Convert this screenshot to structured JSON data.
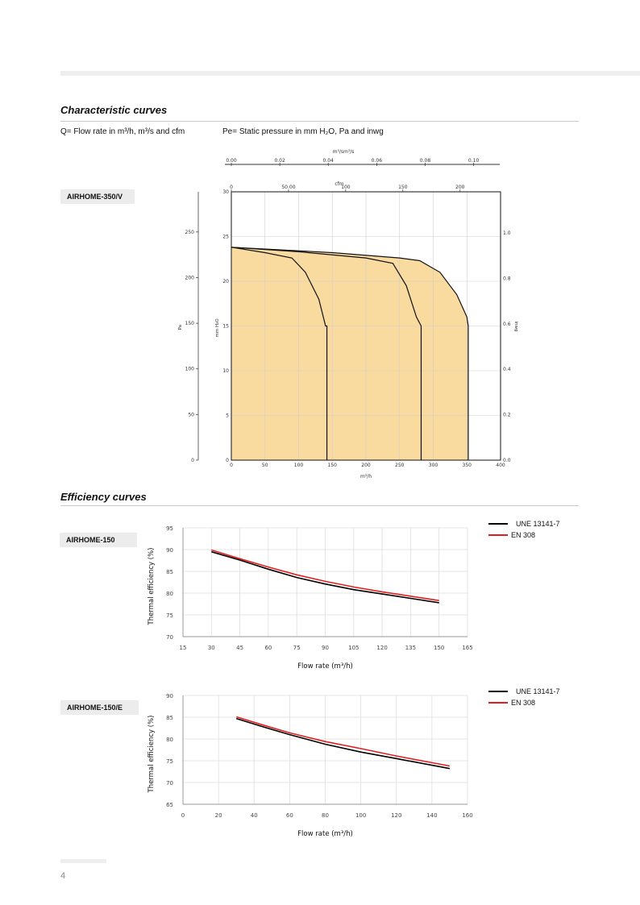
{
  "header": {
    "sections": {
      "characteristic": "Characteristic curves",
      "efficiency": "Efficiency curves"
    }
  },
  "notes": {
    "flow": "Q= Flow rate in m³/h, m³/s and cfm",
    "pressure": "Pe= Static pressure in mm H₂O, Pa and inwg"
  },
  "char_chart": {
    "model": "AIRHOME-350/V",
    "top_axis_label": "m³/sm³/s",
    "top_ticks": [
      "0.00",
      "0.02",
      "0.04",
      "0.06",
      "0.08",
      "0.10"
    ],
    "cfm_label": "cfm",
    "cfm_ticks": [
      "0",
      "50.00",
      "100",
      "150",
      "200"
    ],
    "pa_ticks": [
      "0",
      "50",
      "100",
      "150",
      "200",
      "250"
    ],
    "pa_label": "Pa",
    "mmh2o_ticks": [
      "0",
      "5",
      "10",
      "15",
      "20",
      "25",
      "30"
    ],
    "mmh2o_label": "mm H₂O",
    "inwg_ticks": [
      "0.0",
      "0.2",
      "0.4",
      "0.6",
      "0.8",
      "1.0"
    ],
    "inwg_label": "inwg",
    "x_ticks": [
      "0",
      "50",
      "100",
      "150",
      "200",
      "250",
      "300",
      "350",
      "400"
    ],
    "x_label": "m³/h",
    "fill_color": "#f9da9f",
    "curve_color": "#111111"
  },
  "chart_data": [
    {
      "type": "area",
      "title": "AIRHOME-350/V",
      "xlabel": "m³/h",
      "ylabel": "mm H₂O",
      "xlim": [
        0,
        400
      ],
      "ylim": [
        0,
        30
      ],
      "grid": true,
      "series": [
        {
          "x": [
            0,
            50,
            90,
            110,
            130,
            140,
            142,
            142
          ],
          "y": [
            23.8,
            23.2,
            22.6,
            21,
            18,
            15,
            15,
            0
          ]
        },
        {
          "x": [
            0,
            100,
            200,
            240,
            260,
            275,
            282,
            282
          ],
          "y": [
            23.8,
            23.3,
            22.6,
            22,
            19.5,
            16,
            15,
            0
          ]
        },
        {
          "x": [
            0,
            150,
            250,
            280,
            310,
            335,
            350,
            352,
            352
          ],
          "y": [
            23.8,
            23.2,
            22.6,
            22.3,
            21,
            18.5,
            16,
            15,
            0
          ]
        }
      ]
    },
    {
      "type": "line",
      "title": "AIRHOME-150",
      "xlabel": "Flow rate  (m³/h)",
      "ylabel": "Thermal efficiency (%)",
      "x_ticks": [
        15,
        30,
        45,
        60,
        75,
        90,
        105,
        120,
        135,
        150,
        165
      ],
      "y_ticks": [
        70,
        75,
        80,
        85,
        90,
        95
      ],
      "xlim": [
        15,
        165
      ],
      "ylim": [
        70,
        95
      ],
      "legend": "top-right",
      "series": [
        {
          "name": "UNE 13141-7",
          "color": "#000000",
          "x": [
            30,
            45,
            60,
            75,
            90,
            105,
            120,
            135,
            150
          ],
          "y": [
            89.5,
            87.6,
            85.5,
            83.6,
            82.1,
            80.8,
            79.8,
            78.8,
            77.8
          ]
        },
        {
          "name": "EN 308",
          "color": "#e02020",
          "x": [
            30,
            45,
            60,
            75,
            90,
            105,
            120,
            135,
            150
          ],
          "y": [
            89.9,
            87.9,
            86.0,
            84.2,
            82.7,
            81.4,
            80.3,
            79.3,
            78.3
          ]
        }
      ]
    },
    {
      "type": "line",
      "title": "AIRHOME-150/E",
      "xlabel": "Flow rate  (m³/h)",
      "ylabel": "Thermal efficiency (%)",
      "x_ticks": [
        0,
        20,
        40,
        60,
        80,
        100,
        120,
        140,
        160
      ],
      "y_ticks": [
        65,
        70,
        75,
        80,
        85,
        90
      ],
      "xlim": [
        0,
        160
      ],
      "ylim": [
        65,
        90
      ],
      "legend": "top-right",
      "series": [
        {
          "name": "UNE 13141-7",
          "color": "#000000",
          "x": [
            30,
            45,
            60,
            80,
            100,
            120,
            150
          ],
          "y": [
            84.7,
            82.8,
            81.0,
            78.8,
            77.0,
            75.5,
            73.2
          ]
        },
        {
          "name": "EN 308",
          "color": "#e02020",
          "x": [
            30,
            45,
            60,
            80,
            100,
            120,
            150
          ],
          "y": [
            85.1,
            83.2,
            81.4,
            79.4,
            77.8,
            76.1,
            73.8
          ]
        }
      ]
    }
  ],
  "footer": {
    "page": "4"
  }
}
